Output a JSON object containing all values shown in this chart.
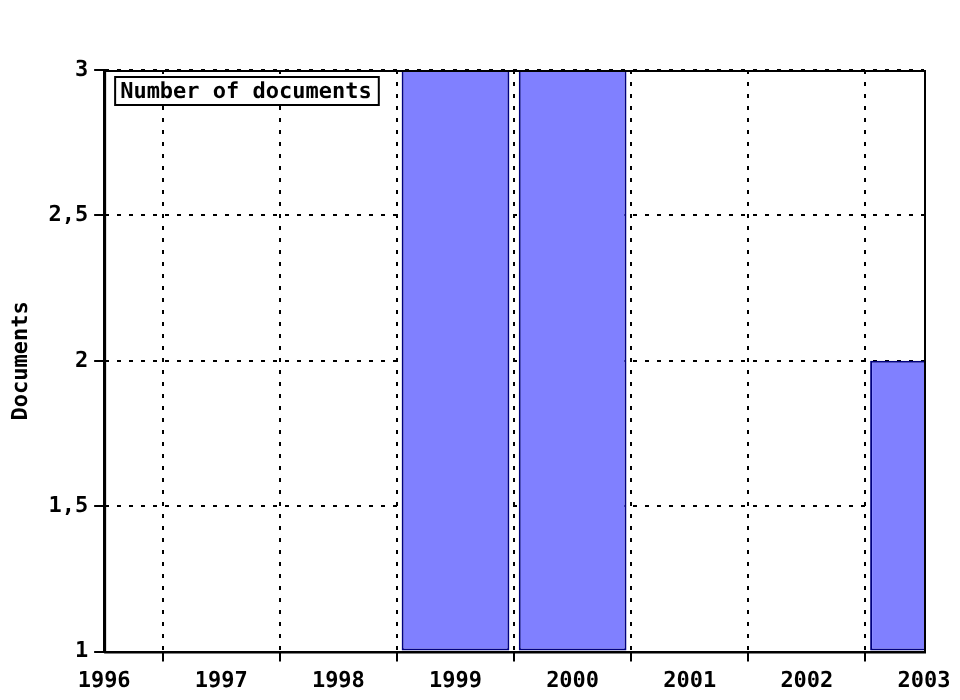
{
  "chart_data": {
    "type": "bar",
    "ylabel": "Documents",
    "x": [
      1999,
      2000,
      2003
    ],
    "series": [
      {
        "name": "Number of documents",
        "color": "#8080ff",
        "values": [
          3,
          3,
          2
        ]
      }
    ],
    "xlim": [
      1996,
      2003
    ],
    "xticks": [
      1996,
      1997,
      1998,
      1999,
      2000,
      2001,
      2002,
      2003
    ],
    "ylim": [
      1,
      3
    ],
    "yticks": [
      1,
      {
        "value": 1.5,
        "label": "1,5"
      },
      2,
      {
        "value": 2.5,
        "label": "2,5"
      },
      3
    ],
    "grid": true,
    "legend": "top left"
  }
}
